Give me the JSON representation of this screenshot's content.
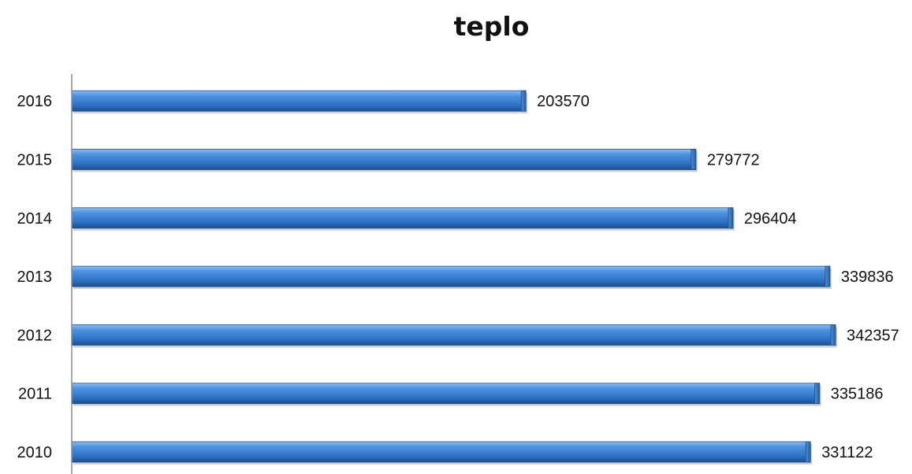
{
  "chart_data": {
    "type": "bar",
    "orientation": "horizontal",
    "title": "teplo",
    "categories": [
      "2010",
      "2011",
      "2012",
      "2013",
      "2014",
      "2015",
      "2016"
    ],
    "values": [
      331122,
      335186,
      342357,
      339836,
      296404,
      279772,
      203570
    ],
    "xlim": [
      0,
      342357
    ],
    "grid": false,
    "legend": "none",
    "data_labels": true,
    "bar_color": "#3f86d8",
    "bar_edge_color": "#1f4f8f"
  }
}
